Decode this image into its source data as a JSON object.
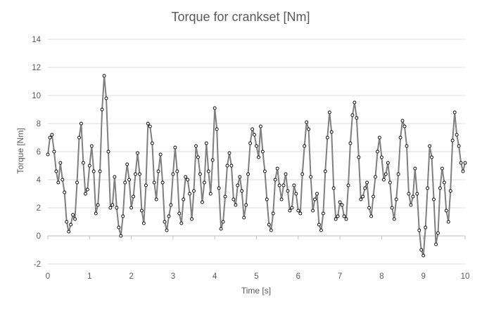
{
  "chart_data": {
    "type": "line",
    "title": "Torque for crankset [Nm]",
    "xlabel": "Time [s]",
    "ylabel": "Torque [Nm]",
    "xlim": [
      0,
      10
    ],
    "ylim": [
      -2,
      14
    ],
    "xticks": [
      0,
      1,
      2,
      3,
      4,
      5,
      6,
      7,
      8,
      9,
      10
    ],
    "yticks": [
      -2,
      0,
      2,
      4,
      6,
      8,
      10,
      12,
      14
    ],
    "grid": "horizontal",
    "legend": "none",
    "series": [
      {
        "line_color": "#7f7f7f",
        "marker": "circle-hollow",
        "points": [
          [
            0.0,
            5.8
          ],
          [
            0.05,
            7.0
          ],
          [
            0.1,
            7.2
          ],
          [
            0.15,
            6.0
          ],
          [
            0.2,
            4.6
          ],
          [
            0.25,
            3.8
          ],
          [
            0.3,
            5.2
          ],
          [
            0.35,
            4.0
          ],
          [
            0.4,
            3.1
          ],
          [
            0.45,
            1.0
          ],
          [
            0.5,
            0.3
          ],
          [
            0.55,
            0.8
          ],
          [
            0.6,
            1.5
          ],
          [
            0.65,
            1.2
          ],
          [
            0.7,
            3.8
          ],
          [
            0.75,
            7.0
          ],
          [
            0.8,
            8.0
          ],
          [
            0.85,
            5.2
          ],
          [
            0.9,
            3.0
          ],
          [
            0.95,
            3.3
          ],
          [
            1.0,
            5.0
          ],
          [
            1.05,
            6.4
          ],
          [
            1.1,
            4.6
          ],
          [
            1.15,
            1.6
          ],
          [
            1.2,
            2.2
          ],
          [
            1.25,
            4.6
          ],
          [
            1.3,
            9.0
          ],
          [
            1.35,
            11.4
          ],
          [
            1.4,
            9.8
          ],
          [
            1.45,
            6.0
          ],
          [
            1.5,
            2.0
          ],
          [
            1.55,
            2.2
          ],
          [
            1.6,
            4.2
          ],
          [
            1.65,
            2.0
          ],
          [
            1.7,
            0.6
          ],
          [
            1.75,
            0.0
          ],
          [
            1.8,
            1.4
          ],
          [
            1.85,
            3.8
          ],
          [
            1.9,
            5.1
          ],
          [
            1.95,
            4.0
          ],
          [
            2.0,
            2.0
          ],
          [
            2.05,
            2.8
          ],
          [
            2.1,
            4.4
          ],
          [
            2.15,
            5.9
          ],
          [
            2.2,
            4.4
          ],
          [
            2.25,
            1.8
          ],
          [
            2.3,
            0.9
          ],
          [
            2.35,
            3.6
          ],
          [
            2.4,
            8.0
          ],
          [
            2.45,
            7.8
          ],
          [
            2.5,
            6.6
          ],
          [
            2.55,
            3.8
          ],
          [
            2.6,
            2.6
          ],
          [
            2.65,
            4.6
          ],
          [
            2.7,
            5.8
          ],
          [
            2.75,
            3.8
          ],
          [
            2.8,
            1.0
          ],
          [
            2.85,
            0.4
          ],
          [
            2.9,
            1.4
          ],
          [
            2.95,
            2.2
          ],
          [
            3.0,
            4.4
          ],
          [
            3.05,
            6.3
          ],
          [
            3.1,
            4.6
          ],
          [
            3.15,
            1.6
          ],
          [
            3.2,
            0.9
          ],
          [
            3.25,
            2.6
          ],
          [
            3.3,
            4.2
          ],
          [
            3.35,
            4.0
          ],
          [
            3.4,
            3.0
          ],
          [
            3.45,
            1.2
          ],
          [
            3.5,
            3.2
          ],
          [
            3.55,
            6.4
          ],
          [
            3.6,
            5.6
          ],
          [
            3.65,
            4.4
          ],
          [
            3.7,
            2.4
          ],
          [
            3.75,
            3.8
          ],
          [
            3.8,
            6.6
          ],
          [
            3.85,
            4.6
          ],
          [
            3.9,
            3.0
          ],
          [
            3.95,
            5.4
          ],
          [
            4.0,
            9.1
          ],
          [
            4.05,
            7.6
          ],
          [
            4.1,
            3.4
          ],
          [
            4.15,
            0.5
          ],
          [
            4.2,
            1.0
          ],
          [
            4.25,
            2.8
          ],
          [
            4.3,
            5.0
          ],
          [
            4.35,
            5.9
          ],
          [
            4.4,
            5.0
          ],
          [
            4.45,
            2.6
          ],
          [
            4.5,
            2.2
          ],
          [
            4.55,
            3.6
          ],
          [
            4.6,
            4.2
          ],
          [
            4.65,
            3.2
          ],
          [
            4.7,
            1.3
          ],
          [
            4.75,
            2.2
          ],
          [
            4.8,
            4.4
          ],
          [
            4.85,
            6.6
          ],
          [
            4.9,
            7.6
          ],
          [
            4.95,
            7.2
          ],
          [
            5.0,
            6.4
          ],
          [
            5.05,
            5.6
          ],
          [
            5.1,
            7.8
          ],
          [
            5.15,
            6.0
          ],
          [
            5.2,
            4.6
          ],
          [
            5.25,
            2.6
          ],
          [
            5.3,
            0.8
          ],
          [
            5.35,
            0.4
          ],
          [
            5.4,
            1.6
          ],
          [
            5.45,
            4.0
          ],
          [
            5.5,
            4.8
          ],
          [
            5.55,
            3.6
          ],
          [
            5.6,
            2.6
          ],
          [
            5.65,
            3.6
          ],
          [
            5.7,
            4.4
          ],
          [
            5.75,
            3.2
          ],
          [
            5.8,
            1.8
          ],
          [
            5.85,
            2.0
          ],
          [
            5.9,
            3.6
          ],
          [
            5.95,
            3.0
          ],
          [
            6.0,
            1.8
          ],
          [
            6.05,
            1.6
          ],
          [
            6.1,
            4.4
          ],
          [
            6.15,
            6.4
          ],
          [
            6.2,
            8.1
          ],
          [
            6.25,
            7.6
          ],
          [
            6.3,
            4.2
          ],
          [
            6.35,
            1.8
          ],
          [
            6.4,
            2.6
          ],
          [
            6.45,
            3.0
          ],
          [
            6.5,
            0.8
          ],
          [
            6.55,
            0.4
          ],
          [
            6.6,
            1.6
          ],
          [
            6.65,
            4.6
          ],
          [
            6.7,
            7.0
          ],
          [
            6.75,
            8.8
          ],
          [
            6.8,
            7.4
          ],
          [
            6.85,
            3.4
          ],
          [
            6.9,
            1.2
          ],
          [
            6.95,
            1.4
          ],
          [
            7.0,
            2.4
          ],
          [
            7.05,
            2.2
          ],
          [
            7.1,
            1.4
          ],
          [
            7.15,
            1.2
          ],
          [
            7.2,
            3.6
          ],
          [
            7.25,
            6.6
          ],
          [
            7.3,
            8.6
          ],
          [
            7.35,
            9.5
          ],
          [
            7.4,
            8.4
          ],
          [
            7.45,
            5.6
          ],
          [
            7.5,
            2.6
          ],
          [
            7.55,
            2.8
          ],
          [
            7.6,
            3.4
          ],
          [
            7.65,
            3.8
          ],
          [
            7.7,
            2.0
          ],
          [
            7.75,
            1.4
          ],
          [
            7.8,
            2.8
          ],
          [
            7.85,
            4.2
          ],
          [
            7.9,
            6.0
          ],
          [
            7.95,
            7.0
          ],
          [
            8.0,
            5.6
          ],
          [
            8.05,
            4.0
          ],
          [
            8.1,
            4.4
          ],
          [
            8.15,
            5.2
          ],
          [
            8.2,
            3.8
          ],
          [
            8.25,
            2.0
          ],
          [
            8.3,
            1.2
          ],
          [
            8.35,
            2.6
          ],
          [
            8.4,
            4.4
          ],
          [
            8.45,
            7.0
          ],
          [
            8.5,
            8.2
          ],
          [
            8.55,
            7.8
          ],
          [
            8.6,
            6.4
          ],
          [
            8.65,
            3.0
          ],
          [
            8.7,
            2.2
          ],
          [
            8.75,
            2.8
          ],
          [
            8.8,
            4.8
          ],
          [
            8.85,
            3.0
          ],
          [
            8.9,
            0.4
          ],
          [
            8.95,
            -1.0
          ],
          [
            9.0,
            -1.4
          ],
          [
            9.05,
            0.6
          ],
          [
            9.1,
            3.4
          ],
          [
            9.15,
            6.4
          ],
          [
            9.2,
            5.6
          ],
          [
            9.25,
            2.6
          ],
          [
            9.3,
            -0.6
          ],
          [
            9.35,
            0.2
          ],
          [
            9.4,
            3.4
          ],
          [
            9.45,
            4.8
          ],
          [
            9.5,
            3.8
          ],
          [
            9.55,
            1.8
          ],
          [
            9.6,
            1.0
          ],
          [
            9.65,
            3.2
          ],
          [
            9.7,
            6.8
          ],
          [
            9.75,
            8.8
          ],
          [
            9.8,
            7.2
          ],
          [
            9.85,
            6.4
          ],
          [
            9.9,
            5.2
          ],
          [
            9.95,
            4.6
          ],
          [
            10.0,
            5.2
          ]
        ]
      }
    ]
  }
}
